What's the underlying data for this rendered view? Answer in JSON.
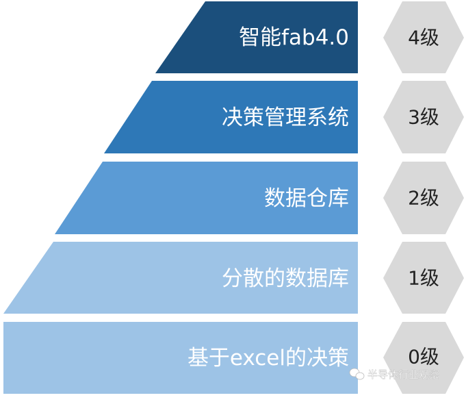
{
  "colors": {
    "level4": "#1b4f7c",
    "level3": "#2e78b7",
    "level2": "#5b9bd5",
    "level1": "#9dc3e6",
    "level0": "#9dc3e6",
    "hexagon": "#d9d9d9"
  },
  "levels": [
    {
      "label": "智能fab4.0",
      "grade": "4级"
    },
    {
      "label": "决策管理系统",
      "grade": "3级"
    },
    {
      "label": "数据仓库",
      "grade": "2级"
    },
    {
      "label": "分散的数据库",
      "grade": "1级"
    },
    {
      "label": "基于excel的决策",
      "grade": "0级"
    }
  ],
  "watermark": {
    "text": "半导体行业观察",
    "icon": "wechat-icon"
  }
}
